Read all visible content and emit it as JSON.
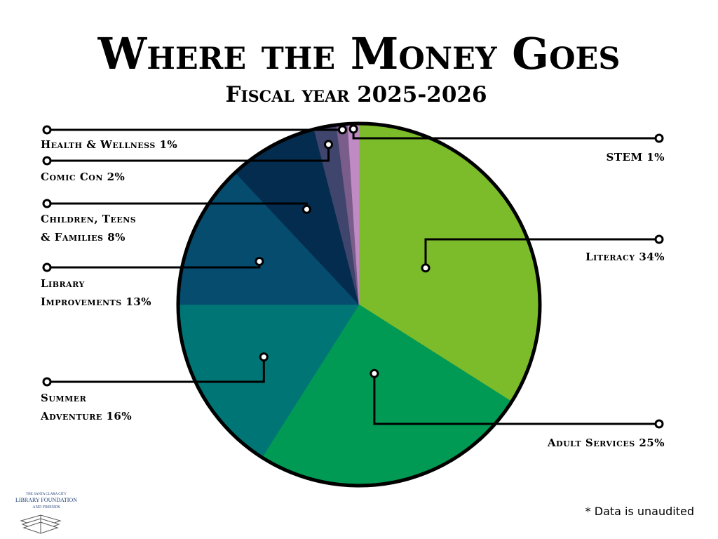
{
  "title": "Where the Money Goes",
  "subtitle": "Fiscal year 2025-2026",
  "footnote": "* Data is unaudited",
  "logo": {
    "line1": "THE SANTA CLARA CITY",
    "line2": "LIBRARY FOUNDATION",
    "line3": "AND FRIENDS"
  },
  "chart_data": {
    "type": "pie",
    "title": "Where the Money Goes",
    "subtitle": "Fiscal year 2025-2026",
    "unit": "%",
    "slices": [
      {
        "name": "Literacy",
        "value": 34,
        "color": "#7cbb29",
        "label": "Literacy  34%"
      },
      {
        "name": "Adult Services",
        "value": 25,
        "color": "#009a54",
        "label": "Adult Services 25%"
      },
      {
        "name": "Summer Adventure",
        "value": 16,
        "color": "#007575",
        "label_lines": [
          "Summer",
          "Adventure 16%"
        ]
      },
      {
        "name": "Library Improvements",
        "value": 13,
        "color": "#054c6e",
        "label_lines": [
          "Library",
          "Improvements 13%"
        ]
      },
      {
        "name": "Children, Teens & Families",
        "value": 8,
        "color": "#042c4f",
        "label_lines": [
          "Children, Teens",
          "& Families 8%"
        ]
      },
      {
        "name": "Comic Con",
        "value": 2,
        "color": "#3f456c",
        "label": "Comic Con 2%"
      },
      {
        "name": "Health & Wellness",
        "value": 1,
        "color": "#7a5d8b",
        "label": "Health & Wellness 1%"
      },
      {
        "name": "STEM",
        "value": 1,
        "color": "#c08bc4",
        "label": "STEM 1%"
      }
    ]
  }
}
